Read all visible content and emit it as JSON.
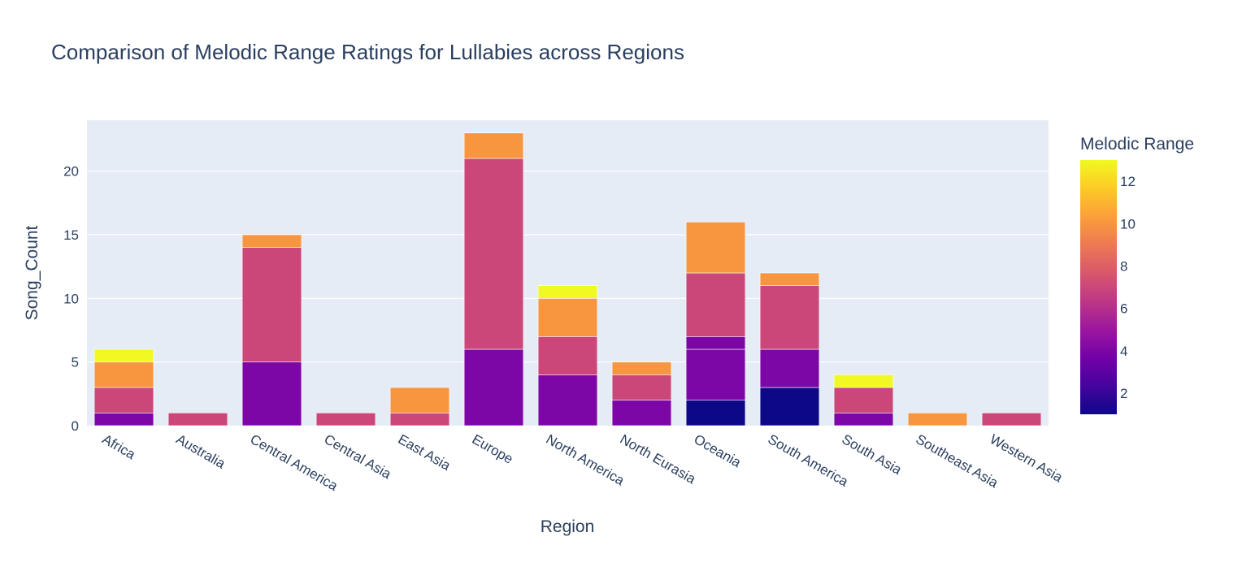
{
  "chart_data": {
    "type": "bar",
    "barmode": "stack",
    "title": "Comparison of Melodic Range Ratings for Lullabies across Regions",
    "xlabel": "Region",
    "ylabel": "Song_Count",
    "ylim": [
      0,
      24
    ],
    "yticks": [
      0,
      5,
      10,
      15,
      20
    ],
    "grid": true,
    "categories": [
      "Africa",
      "Australia",
      "Central America",
      "Central Asia",
      "East Asia",
      "Europe",
      "North America",
      "North Eurasia",
      "Oceania",
      "South America",
      "South Asia",
      "Southeast Asia",
      "Western Asia"
    ],
    "bars": [
      {
        "region": "Africa",
        "segments": [
          {
            "melodic_range": 4,
            "count": 1
          },
          {
            "melodic_range": 7,
            "count": 2
          },
          {
            "melodic_range": 10,
            "count": 2
          },
          {
            "melodic_range": 13,
            "count": 1
          }
        ]
      },
      {
        "region": "Australia",
        "segments": [
          {
            "melodic_range": 7,
            "count": 1
          }
        ]
      },
      {
        "region": "Central America",
        "segments": [
          {
            "melodic_range": 4,
            "count": 5
          },
          {
            "melodic_range": 7,
            "count": 9
          },
          {
            "melodic_range": 10,
            "count": 1
          }
        ]
      },
      {
        "region": "Central Asia",
        "segments": [
          {
            "melodic_range": 7,
            "count": 1
          }
        ]
      },
      {
        "region": "East Asia",
        "segments": [
          {
            "melodic_range": 7,
            "count": 1
          },
          {
            "melodic_range": 10,
            "count": 2
          }
        ]
      },
      {
        "region": "Europe",
        "segments": [
          {
            "melodic_range": 4,
            "count": 6
          },
          {
            "melodic_range": 7,
            "count": 15
          },
          {
            "melodic_range": 10,
            "count": 2
          }
        ]
      },
      {
        "region": "North America",
        "segments": [
          {
            "melodic_range": 4,
            "count": 4
          },
          {
            "melodic_range": 7,
            "count": 3
          },
          {
            "melodic_range": 10,
            "count": 3
          },
          {
            "melodic_range": 13,
            "count": 1
          }
        ]
      },
      {
        "region": "North Eurasia",
        "segments": [
          {
            "melodic_range": 4,
            "count": 2
          },
          {
            "melodic_range": 7,
            "count": 2
          },
          {
            "melodic_range": 10,
            "count": 1
          }
        ]
      },
      {
        "region": "Oceania",
        "segments": [
          {
            "melodic_range": 1,
            "count": 2
          },
          {
            "melodic_range": 4,
            "count": 4
          },
          {
            "melodic_range": 4,
            "count": 1
          },
          {
            "melodic_range": 7,
            "count": 5
          },
          {
            "melodic_range": 10,
            "count": 4
          }
        ]
      },
      {
        "region": "South America",
        "segments": [
          {
            "melodic_range": 1,
            "count": 3
          },
          {
            "melodic_range": 4,
            "count": 3
          },
          {
            "melodic_range": 7,
            "count": 5
          },
          {
            "melodic_range": 10,
            "count": 1
          }
        ]
      },
      {
        "region": "South Asia",
        "segments": [
          {
            "melodic_range": 4,
            "count": 1
          },
          {
            "melodic_range": 7,
            "count": 2
          },
          {
            "melodic_range": 13,
            "count": 1
          }
        ]
      },
      {
        "region": "Southeast Asia",
        "segments": [
          {
            "melodic_range": 10,
            "count": 1
          }
        ]
      },
      {
        "region": "Western Asia",
        "segments": [
          {
            "melodic_range": 7,
            "count": 1
          }
        ]
      }
    ],
    "colorbar": {
      "title": "Melodic Range",
      "range": [
        1,
        13
      ],
      "ticks": [
        2,
        4,
        6,
        8,
        10,
        12
      ],
      "colorscale": [
        "#0d0887",
        "#46039f",
        "#7201a8",
        "#9c179e",
        "#bd3786",
        "#d8576b",
        "#ed7953",
        "#fb9f3a",
        "#fdca26",
        "#f0f921"
      ]
    }
  }
}
